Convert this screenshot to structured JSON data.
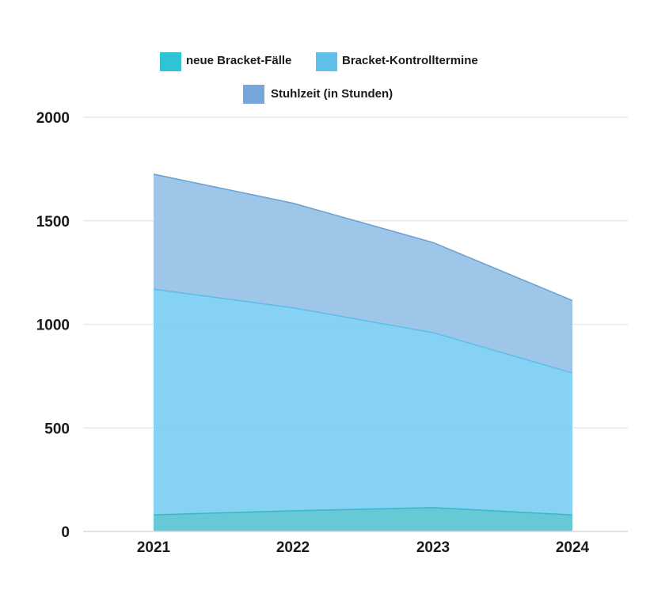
{
  "colors": {
    "background": "#ffffff",
    "grid": "#e9e9e9",
    "text": "#1a1a1a"
  },
  "chart_data": {
    "type": "area",
    "stacked": true,
    "title": "",
    "xlabel": "",
    "ylabel": "",
    "x": [
      "2021",
      "2022",
      "2023",
      "2024"
    ],
    "ylim": [
      0,
      2000
    ],
    "yticks": [
      0,
      500,
      1000,
      1500,
      2000
    ],
    "grid": true,
    "legend_position": "top-center",
    "series": [
      {
        "name": "neue Bracket-Fälle",
        "values": [
          80,
          100,
          115,
          80
        ],
        "fill": "#5fc6d3",
        "stroke": "#3ab7c7",
        "swatch": "#2ec4d4"
      },
      {
        "name": "Bracket-Kontrolltermine",
        "values": [
          1090,
          980,
          845,
          685
        ],
        "fill": "#7ed0f4",
        "stroke": "#5cbde9",
        "swatch": "#5fc0ea"
      },
      {
        "name": "Stuhlzeit (in Stunden)",
        "values": [
          555,
          505,
          435,
          350
        ],
        "fill": "#98c3e8",
        "stroke": "#6b9fd0",
        "swatch": "#76a6da"
      }
    ]
  }
}
